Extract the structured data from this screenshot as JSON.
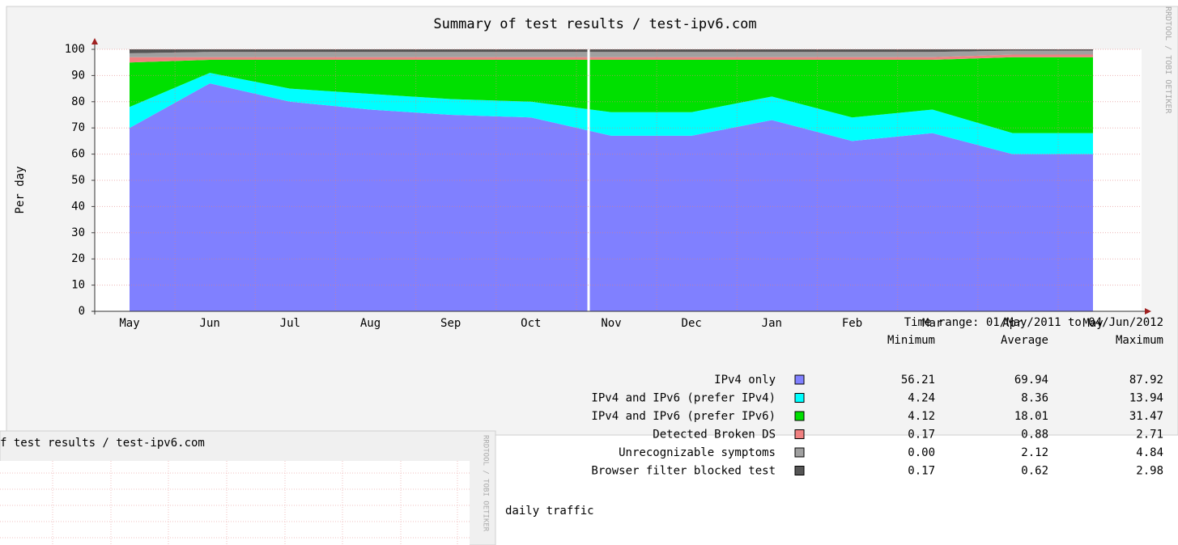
{
  "chart_data": {
    "type": "stacked_area",
    "title": "Summary of test results / test-ipv6.com",
    "y_label": "Per day",
    "watermark": "RRDTOOL / TOBI OETIKER",
    "categories": [
      "May",
      "Jun",
      "Jul",
      "Aug",
      "Sep",
      "Oct",
      "Nov",
      "Dec",
      "Jan",
      "Feb",
      "Mar",
      "Apr",
      "May"
    ],
    "series": [
      {
        "name": "IPv4 only",
        "color": "#8080ff",
        "values": [
          70,
          87,
          80,
          77,
          75,
          74,
          67,
          67,
          73,
          65,
          68,
          60,
          60
        ],
        "min": "56.21",
        "avg": "69.94",
        "max": "87.92"
      },
      {
        "name": "IPv4 and IPv6 (prefer IPv4)",
        "color": "#00ffff",
        "values": [
          8,
          4,
          5,
          6,
          6,
          6,
          9,
          9,
          9,
          9,
          9,
          8,
          8
        ],
        "min": "4.24",
        "avg": "8.36",
        "max": "13.94"
      },
      {
        "name": "IPv4 and IPv6 (prefer IPv6)",
        "color": "#00e000",
        "values": [
          17,
          5,
          11,
          13,
          15,
          16,
          20,
          20,
          14,
          22,
          19,
          29,
          29
        ],
        "min": "4.12",
        "avg": "18.01",
        "max": "31.47"
      },
      {
        "name": "Detected Broken DS",
        "color": "#f08080",
        "values": [
          2,
          1,
          1,
          1,
          1,
          1,
          1,
          1,
          1,
          1,
          1,
          1,
          1
        ],
        "min": "0.17",
        "avg": "0.88",
        "max": "2.71"
      },
      {
        "name": "Unrecognizable symptoms",
        "color": "#a0a0a0",
        "values": [
          1.5,
          2,
          2,
          2,
          2,
          2,
          2,
          2,
          2,
          2,
          2,
          1.5,
          1.5
        ],
        "min": "0.00",
        "avg": "2.12",
        "max": "4.84"
      },
      {
        "name": "Browser filter blocked test",
        "color": "#555555",
        "values": [
          1.5,
          1,
          1,
          1,
          1,
          1,
          1,
          1,
          1,
          1,
          1,
          0.5,
          0.5
        ],
        "min": "0.17",
        "avg": "0.62",
        "max": "2.98"
      }
    ],
    "ylim": [
      0,
      100
    ],
    "yticks": [
      0,
      10,
      20,
      30,
      40,
      50,
      60,
      70,
      80,
      90,
      100
    ],
    "grid": true,
    "time_range": "Time range: 01/May/2011 to 04/Jun/2012",
    "stat_headers": [
      "Minimum",
      "Average",
      "Maximum"
    ]
  },
  "secondary": {
    "title": "f test results / test-ipv6.com",
    "watermark": "RRDTOOL / TOBI OETIKER"
  },
  "caption": "daily traffic"
}
